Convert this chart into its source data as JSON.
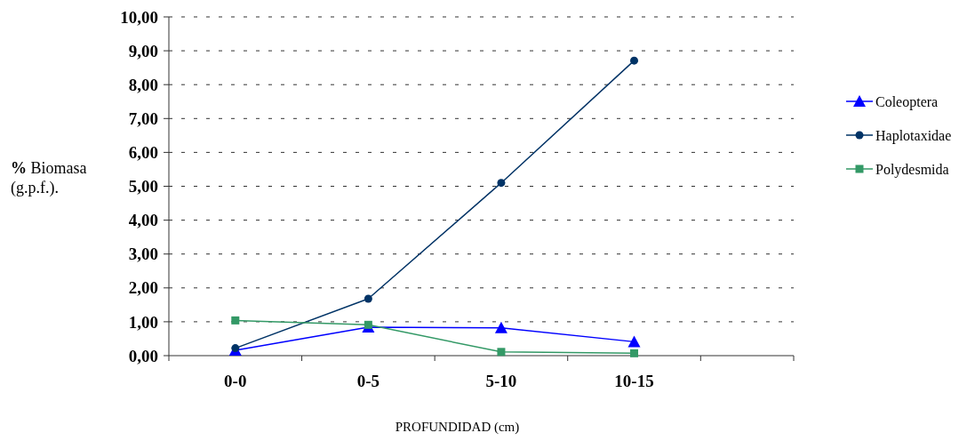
{
  "chart_data": {
    "type": "line",
    "xlabel": "PROFUNDIDAD (cm)",
    "ylabel": "% Biomasa (g.p.f.).",
    "categories": [
      "0-0",
      "0-5",
      "5-10",
      "10-15"
    ],
    "series": [
      {
        "name": "Coleoptera",
        "color": "#0000ff",
        "marker": "triangle",
        "values": [
          0.16,
          0.84,
          0.82,
          0.41
        ]
      },
      {
        "name": "Haplotaxidae",
        "color": "#003366",
        "marker": "circle",
        "values": [
          0.22,
          1.68,
          5.1,
          8.71
        ]
      },
      {
        "name": "Polydesmida",
        "color": "#339966",
        "marker": "square",
        "values": [
          1.04,
          0.91,
          0.11,
          0.07
        ]
      }
    ],
    "ylim": [
      0,
      10
    ],
    "yticks": [
      {
        "value": 0,
        "label": "0,00"
      },
      {
        "value": 1,
        "label": "1,00"
      },
      {
        "value": 2,
        "label": "2,00"
      },
      {
        "value": 3,
        "label": "3,00"
      },
      {
        "value": 4,
        "label": "4,00"
      },
      {
        "value": 5,
        "label": "5,00"
      },
      {
        "value": 6,
        "label": "6,00"
      },
      {
        "value": 7,
        "label": "7,00"
      },
      {
        "value": 8,
        "label": "8,00"
      },
      {
        "value": 9,
        "label": "9,00"
      },
      {
        "value": 10,
        "label": "10,00"
      }
    ],
    "grid": "y",
    "legend": "right",
    "line_style": "solid"
  }
}
